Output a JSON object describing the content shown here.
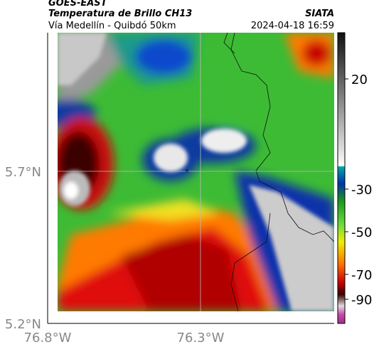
{
  "header": {
    "satellite": "GOES-EAST",
    "product": "Temperatura de Brillo CH13",
    "region": "Vía Medellín - Quibdó 50km",
    "source": "SIATA",
    "datetime": "2024-04-18 16:59"
  },
  "map": {
    "lat_ticks": [
      "5.7°N",
      "5.2°N"
    ],
    "lon_ticks": [
      "76.8°W",
      "76.3°W"
    ]
  },
  "colorbar": {
    "ticks": [
      20,
      -30,
      -50,
      -70,
      -90
    ]
  }
}
